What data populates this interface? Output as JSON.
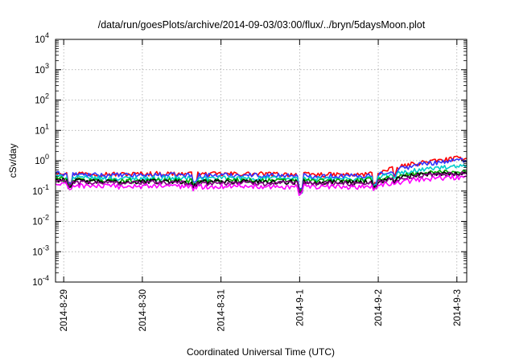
{
  "chart_data": {
    "type": "line",
    "title": "/data/run/goesPlots/archive/2014-09-03/03:00/flux/../bryn/5daysMoon.plot",
    "xlabel": "Coordinated Universal Time (UTC)",
    "ylabel": "cSv/day",
    "yscale": "log",
    "ylim": [
      0.0001,
      10000
    ],
    "xlim": [
      "2014-08-28 21:30",
      "2014-09-03 03:00"
    ],
    "y_ticks": [
      {
        "value": 0.0001,
        "base": "10",
        "exp": "-4"
      },
      {
        "value": 0.001,
        "base": "10",
        "exp": "-3"
      },
      {
        "value": 0.01,
        "base": "10",
        "exp": "-2"
      },
      {
        "value": 0.1,
        "base": "10",
        "exp": "-1"
      },
      {
        "value": 1,
        "base": "10",
        "exp": "0"
      },
      {
        "value": 10,
        "base": "10",
        "exp": "1"
      },
      {
        "value": 100,
        "base": "10",
        "exp": "2"
      },
      {
        "value": 1000,
        "base": "10",
        "exp": "3"
      },
      {
        "value": 10000,
        "base": "10",
        "exp": "4"
      }
    ],
    "x_ticks": [
      {
        "value": "2014-08-29 00:00",
        "label": "2014-8-29"
      },
      {
        "value": "2014-08-30 00:00",
        "label": "2014-8-30"
      },
      {
        "value": "2014-08-31 00:00",
        "label": "2014-8-31"
      },
      {
        "value": "2014-09-01 00:00",
        "label": "2014-9-1"
      },
      {
        "value": "2014-09-02 00:00",
        "label": "2014-9-2"
      },
      {
        "value": "2014-09-03 00:00",
        "label": "2014-9-3"
      }
    ],
    "grid": true,
    "legend": "none",
    "x": [
      "2014-08-28 21:30",
      "2014-08-29 06:00",
      "2014-08-29 18:00",
      "2014-08-30 06:00",
      "2014-08-30 18:00",
      "2014-08-31 06:00",
      "2014-08-31 18:00",
      "2014-09-01 06:00",
      "2014-09-01 18:00",
      "2014-09-02 00:00",
      "2014-09-02 06:00",
      "2014-09-02 12:00",
      "2014-09-02 18:00",
      "2014-09-03 03:00"
    ],
    "series": [
      {
        "color": "#ff0000",
        "values": [
          0.42,
          0.38,
          0.36,
          0.38,
          0.36,
          0.37,
          0.36,
          0.35,
          0.34,
          0.4,
          0.6,
          0.85,
          1.0,
          1.3
        ]
      },
      {
        "color": "#3333ff",
        "values": [
          0.38,
          0.34,
          0.33,
          0.34,
          0.33,
          0.34,
          0.33,
          0.32,
          0.31,
          0.36,
          0.52,
          0.75,
          0.9,
          1.1
        ]
      },
      {
        "color": "#00cccc",
        "values": [
          0.3,
          0.27,
          0.26,
          0.27,
          0.26,
          0.27,
          0.26,
          0.25,
          0.25,
          0.28,
          0.38,
          0.5,
          0.58,
          0.65
        ]
      },
      {
        "color": "#00aa00",
        "values": [
          0.26,
          0.23,
          0.22,
          0.23,
          0.22,
          0.23,
          0.22,
          0.22,
          0.22,
          0.24,
          0.3,
          0.38,
          0.42,
          0.45
        ]
      },
      {
        "color": "#000000",
        "values": [
          0.24,
          0.21,
          0.2,
          0.21,
          0.2,
          0.21,
          0.2,
          0.2,
          0.2,
          0.21,
          0.27,
          0.34,
          0.38,
          0.4
        ]
      },
      {
        "color": "#800080",
        "values": [
          0.22,
          0.19,
          0.19,
          0.19,
          0.18,
          0.19,
          0.18,
          0.18,
          0.18,
          0.2,
          0.25,
          0.31,
          0.35,
          0.37
        ]
      },
      {
        "color": "#ff00ff",
        "values": [
          0.17,
          0.15,
          0.14,
          0.15,
          0.14,
          0.15,
          0.14,
          0.14,
          0.14,
          0.15,
          0.19,
          0.24,
          0.27,
          0.29
        ]
      }
    ]
  }
}
